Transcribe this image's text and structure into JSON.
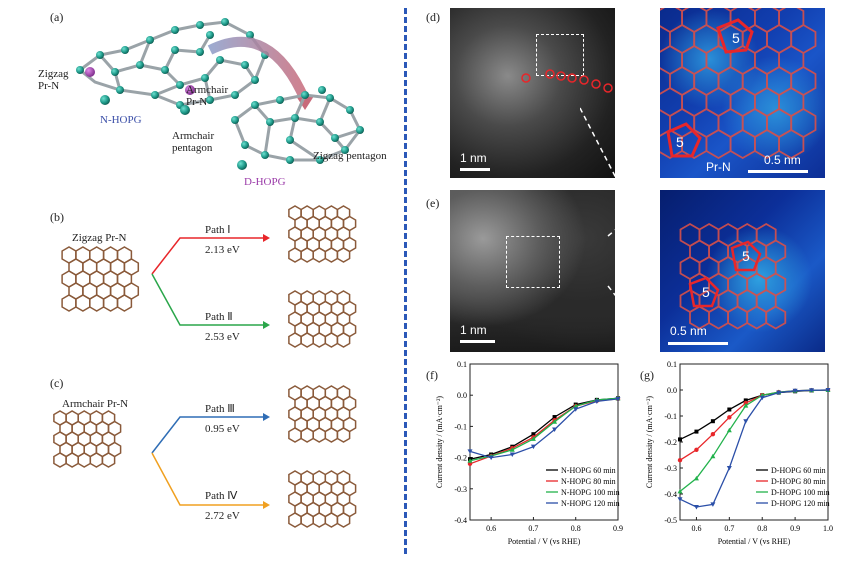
{
  "panels": {
    "a": {
      "letter": "(a)",
      "zigzag_label": "Zigzag\nPr-N",
      "zigzag_line1": "Zigzag",
      "zigzag_line2": "Pr-N",
      "armchair_line1": "Armchair",
      "armchair_line2": "Pr-N",
      "nhopg": "N-HOPG",
      "armchair_pent_line1": "Armchair",
      "armchair_pent_line2": "pentagon",
      "zigzag_pent": "Zigzag pentagon",
      "dhopg": "D-HOPG"
    },
    "b": {
      "letter": "(b)",
      "title": "Zigzag Pr-N",
      "path1": "Path Ⅰ",
      "path1_energy": "2.13 eV",
      "path2": "Path Ⅱ",
      "path2_energy": "2.53 eV"
    },
    "c": {
      "letter": "(c)",
      "title": "Armchair Pr-N",
      "path3": "Path Ⅲ",
      "path3_energy": "0.95 eV",
      "path4": "Path Ⅳ",
      "path4_energy": "2.72 eV"
    },
    "d": {
      "letter": "(d)",
      "scale_left": "1 nm",
      "scale_right": "0.5 nm",
      "pr_n": "Pr-N",
      "pent1": "5",
      "pent2": "5"
    },
    "e": {
      "letter": "(e)",
      "scale_left": "1 nm",
      "scale_right": "0.5 nm",
      "pent1": "5",
      "pent2": "5"
    }
  },
  "colors": {
    "path1": "#e8262a",
    "path2": "#2aa64a",
    "path3": "#2f6db5",
    "path4": "#f0a020",
    "divider": "#2b58b8",
    "s60": "#000000",
    "s80": "#e8262a",
    "s100": "#22b24c",
    "s120": "#2b4fa8"
  },
  "chart_data": [
    {
      "type": "line",
      "panel": "(f)",
      "xlabel": "Potential / V (vs RHE)",
      "ylabel": "Current density / (mA·cm⁻²)",
      "xlim": [
        0.55,
        0.9
      ],
      "ylim": [
        -0.4,
        0.1
      ],
      "xticks": [
        "0.6",
        "0.7",
        "0.8",
        "0.9"
      ],
      "yticks": [
        "0.1",
        "0.0",
        "-0.1",
        "-0.2",
        "-0.3",
        "-0.4"
      ],
      "legend_position": "bottom-right",
      "x": [
        0.55,
        0.6,
        0.65,
        0.7,
        0.75,
        0.8,
        0.85,
        0.9
      ],
      "series": [
        {
          "name": "N-HOPG 60 min",
          "values": [
            -0.205,
            -0.19,
            -0.165,
            -0.125,
            -0.07,
            -0.03,
            -0.015,
            -0.01
          ]
        },
        {
          "name": "N-HOPG 80 min",
          "values": [
            -0.22,
            -0.195,
            -0.17,
            -0.135,
            -0.08,
            -0.035,
            -0.018,
            -0.012
          ]
        },
        {
          "name": "N-HOPG 100 min",
          "values": [
            -0.21,
            -0.195,
            -0.175,
            -0.14,
            -0.085,
            -0.035,
            -0.015,
            -0.01
          ]
        },
        {
          "name": "N-HOPG 120 min",
          "values": [
            -0.18,
            -0.2,
            -0.19,
            -0.165,
            -0.11,
            -0.045,
            -0.02,
            -0.012
          ]
        }
      ]
    },
    {
      "type": "line",
      "panel": "(g)",
      "xlabel": "Potential / V (vs RHE)",
      "ylabel": "Current density / (mA·cm⁻²)",
      "xlim": [
        0.55,
        1.0
      ],
      "ylim": [
        -0.5,
        0.1
      ],
      "xticks": [
        "0.6",
        "0.7",
        "0.8",
        "0.9",
        "1.0"
      ],
      "yticks": [
        "0.1",
        "0.0",
        "-0.1",
        "-0.2",
        "-0.3",
        "-0.4",
        "-0.5"
      ],
      "legend_position": "bottom-right",
      "x": [
        0.55,
        0.6,
        0.65,
        0.7,
        0.75,
        0.8,
        0.85,
        0.9,
        0.95,
        1.0
      ],
      "series": [
        {
          "name": "D-HOPG 60 min",
          "values": [
            -0.19,
            -0.16,
            -0.12,
            -0.075,
            -0.04,
            -0.02,
            -0.01,
            -0.005,
            -0.002,
            0.0
          ]
        },
        {
          "name": "D-HOPG 80 min",
          "values": [
            -0.27,
            -0.23,
            -0.17,
            -0.105,
            -0.05,
            -0.02,
            -0.008,
            -0.003,
            -0.001,
            0.0
          ]
        },
        {
          "name": "D-HOPG 100 min",
          "values": [
            -0.39,
            -0.34,
            -0.255,
            -0.155,
            -0.06,
            -0.02,
            -0.008,
            -0.003,
            -0.001,
            0.0
          ]
        },
        {
          "name": "D-HOPG 120 min",
          "values": [
            -0.42,
            -0.45,
            -0.44,
            -0.3,
            -0.12,
            -0.03,
            -0.01,
            -0.003,
            -0.001,
            0.0
          ]
        }
      ]
    }
  ]
}
